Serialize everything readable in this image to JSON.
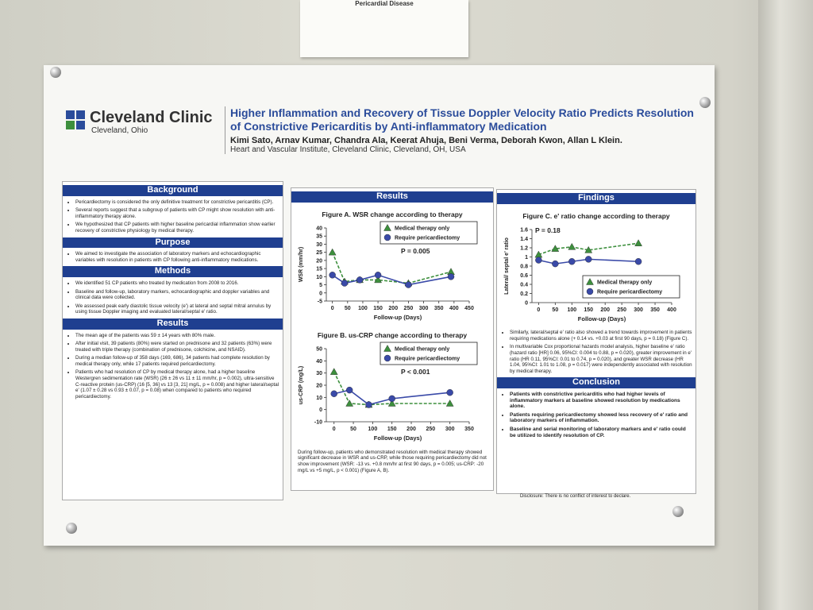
{
  "sign": {
    "text": "Pericardial Disease"
  },
  "header": {
    "org": "Cleveland Clinic",
    "location": "Cleveland, Ohio",
    "title": "Higher Inflammation and Recovery of Tissue Doppler Velocity Ratio Predicts Resolution of Constrictive Pericarditis by Anti-inflammatory Medication",
    "authors": "Kimi Sato, Arnav Kumar, Chandra Ala, Keerat Ahuja, Beni Verma, Deborah Kwon, Allan L Klein.",
    "affiliation": "Heart and Vascular Institute, Cleveland Clinic, Cleveland, OH, USA"
  },
  "left_sections": [
    {
      "heading": "Background",
      "items": [
        "Pericardiectomy is considered the only definitive treatment for constrictive pericarditis (CP).",
        "Several reports suggest that a subgroup of patients with CP might show resolution with anti-inflammatory therapy alone.",
        "We hypothesized that CP patients with higher baseline pericardial inflammation show earlier recovery of constrictive physiology by medical therapy."
      ]
    },
    {
      "heading": "Purpose",
      "items": [
        "We aimed to investigate the association of laboratory markers and echocardiographic variables with resolution in patients with CP following anti-inflammatory medications."
      ]
    },
    {
      "heading": "Methods",
      "items": [
        "We identified 51 CP patients who treated by medication from 2008 to 2016.",
        "Baseline and follow-up, laboratory markers, echocardiographic and doppler variables and clinical data were collected.",
        "We assessed peak early diastolic tissue velocity (e') at lateral and septal mitral annulus by using tissue Doppler imaging and evaluated lateral/septal e' ratio."
      ]
    },
    {
      "heading": "Results",
      "items": [
        "The mean age of the patients was 59 ± 14 years with 80% male.",
        "After initial visit, 39 patients (80%) were started on prednisone and 32 patients (63%) were treated with triple therapy (combination of prednisone, colchicine, and NSAID).",
        "During a median follow-up of 358 days (169, 686), 34 patients had complete resolution by medical therapy only, while 17 patients required pericardiectomy.",
        "Patients who had resolution of CP by medical therapy alone, had a higher baseline Westergren sedimentation rate (WSR) (26 ± 26 vs 11 ± 11 mm/hr, p = 0.002), ultra-sensitive C-reactive protein (us-CRP) (16 [5, 36] vs 13 [3, 21] mg/L, p = 0.008) and higher lateral/septal e' (1.07 ± 0.28 vs 0.93 ± 0.07, p = 0.08) when compared to patients who required pericardiectomy."
      ]
    }
  ],
  "results_heading": "Results",
  "results_note": "During follow-up, patients who demonstrated resolution with medical therapy showed significant decrease in WSR and us-CRP, while those requiring pericardiectomy did not show improvement (WSR: -13 vs. +0.8 mm/hr at first 90 days, p = 0.005; us-CRP: -20 mg/L vs +5 mg/L, p < 0.001) (Figure A, B).",
  "findings_heading": "Findings",
  "findings_notes": [
    "Similarly, lateral/septal e' ratio also showed a trend towards improvement in patients requiring medications alone (+ 0.14 vs. +0.03 at first 90 days, p = 0.18) (Figure C).",
    "In multivariable Cox proportional hazards model analysis, higher baseline e' ratio (hazard ratio [HR] 0.06, 95%CI: 0.004 to 0.88, p = 0.020), greater improvement in e' ratio (HR 0.11, 95%CI: 0.01 to 0.74, p = 0.020), and greater WSR decrease (HR 1.04, 95%CI: 1.01 to 1.08, p = 0.017) were independently associated with resolution by medical therapy."
  ],
  "conclusion": {
    "heading": "Conclusion",
    "items": [
      "Patients with constrictive pericarditis who had higher levels of inflammatory markers at baseline showed resolution by medications alone.",
      "Patients requiring pericardiectomy showed less recovery of e' ratio and laboratory markers of inflammation.",
      "Baseline and serial monitoring of laboratory markers and e' ratio could be utilized to identify resolution of CP."
    ]
  },
  "disclosure": "Disclosure: There is no conflict of interest to declare.",
  "chart_data": [
    {
      "type": "line",
      "title": "Figure A. WSR change according to therapy",
      "xlabel": "Follow-up (Days)",
      "ylabel": "WSR (mm/hr)",
      "annotation": "P = 0.005",
      "legend": "upper right",
      "x": [
        0,
        40,
        90,
        150,
        250,
        390
      ],
      "xlim": [
        -20,
        450
      ],
      "xticks": [
        0,
        50,
        100,
        150,
        200,
        250,
        300,
        350,
        400,
        450
      ],
      "ylim": [
        -5,
        40
      ],
      "yticks": [
        -5,
        0,
        5,
        10,
        15,
        20,
        25,
        30,
        35,
        40
      ],
      "series": [
        {
          "name": "Medical therapy only",
          "color": "#3d8f3d",
          "marker": "triangle",
          "linestyle": "dashed",
          "values": [
            25,
            7,
            8,
            8,
            6,
            13
          ]
        },
        {
          "name": "Require pericardiectomy",
          "color": "#3a4aa8",
          "marker": "circle",
          "linestyle": "solid",
          "values": [
            11,
            6,
            8,
            11,
            5,
            10
          ]
        }
      ]
    },
    {
      "type": "line",
      "title": "Figure B. us-CRP change according to therapy",
      "xlabel": "Follow-up (Days)",
      "ylabel": "us-CRP (mg/L)",
      "annotation": "P < 0.001",
      "legend": "upper right",
      "x": [
        0,
        40,
        90,
        150,
        300
      ],
      "xlim": [
        -20,
        350
      ],
      "xticks": [
        0,
        50,
        100,
        150,
        200,
        250,
        300,
        350
      ],
      "ylim": [
        -10,
        50
      ],
      "yticks": [
        -10,
        0,
        10,
        20,
        30,
        40,
        50
      ],
      "series": [
        {
          "name": "Medical therapy only",
          "color": "#3d8f3d",
          "marker": "triangle",
          "linestyle": "dashed",
          "values": [
            31,
            5,
            4,
            5,
            5
          ]
        },
        {
          "name": "Require pericardiectomy",
          "color": "#3a4aa8",
          "marker": "circle",
          "linestyle": "solid",
          "values": [
            13,
            16,
            4,
            9,
            14
          ]
        }
      ]
    },
    {
      "type": "line",
      "title": "Figure C. e' ratio change according to therapy",
      "xlabel": "Follow-up (Days)",
      "ylabel": "Lateral/ septal e' ratio",
      "annotation": "P = 0.18",
      "legend": "lower right",
      "x": [
        0,
        50,
        100,
        150,
        300
      ],
      "xlim": [
        -20,
        400
      ],
      "xticks": [
        0,
        50,
        100,
        150,
        200,
        250,
        300,
        350,
        400
      ],
      "ylim": [
        0,
        1.6
      ],
      "yticks": [
        0,
        0.2,
        0.4,
        0.6,
        0.8,
        1,
        1.2,
        1.4,
        1.6
      ],
      "series": [
        {
          "name": "Medical therapy only",
          "color": "#3d8f3d",
          "marker": "triangle",
          "linestyle": "dashed",
          "values": [
            1.05,
            1.18,
            1.22,
            1.15,
            1.3
          ]
        },
        {
          "name": "Require pericardiectomy",
          "color": "#3a4aa8",
          "marker": "circle",
          "linestyle": "solid",
          "values": [
            0.93,
            0.85,
            0.9,
            0.95,
            0.9
          ]
        }
      ]
    }
  ]
}
